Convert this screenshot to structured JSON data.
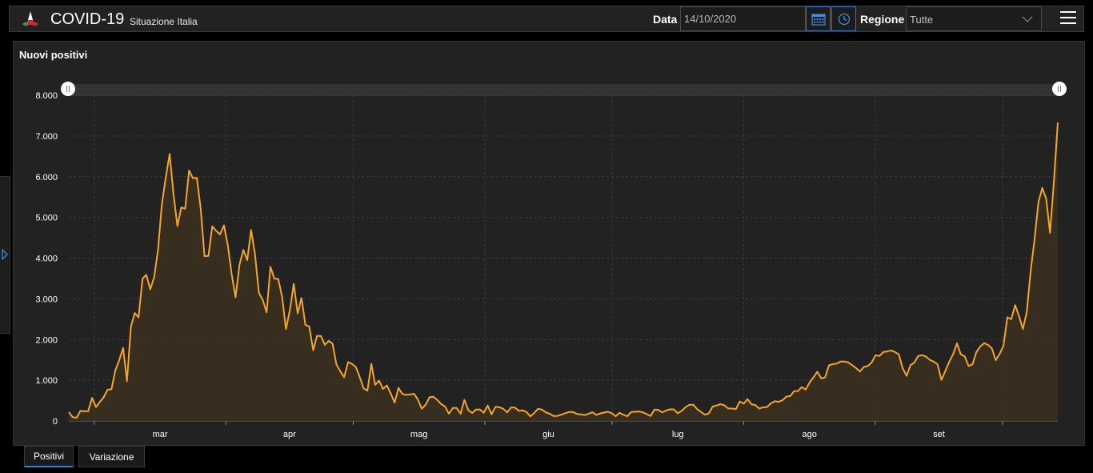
{
  "header": {
    "title": "COVID-19",
    "subtitle": "Situazione Italia",
    "date_label": "Data",
    "date_value": "14/10/2020",
    "region_label": "Regione",
    "region_value": "Tutte"
  },
  "panel": {
    "title": "Nuovi positivi"
  },
  "tabs": [
    "Positivi",
    "Variazione"
  ],
  "colors": {
    "line": "#f5a623",
    "fill": "#3a3020",
    "accent": "#2f7fd6",
    "background": "#222222"
  },
  "icons": [
    "logo",
    "calendar-icon",
    "clock-icon",
    "chevron-down-icon",
    "menu-icon",
    "sidebar-toggle-icon"
  ],
  "chart_data": {
    "type": "area",
    "title": "",
    "xlabel": "",
    "ylabel": "",
    "ylim": [
      0,
      8000
    ],
    "y_ticks": [
      0,
      1000,
      2000,
      3000,
      4000,
      5000,
      6000,
      7000,
      8000
    ],
    "y_tick_labels": [
      "0",
      "1.000",
      "2.000",
      "3.000",
      "4.000",
      "5.000",
      "6.000",
      "7.000",
      "8.000"
    ],
    "x_tick_labels": [
      "mar",
      "apr",
      "mag",
      "giu",
      "lug",
      "ago",
      "set"
    ],
    "x_start": "2020-02-24",
    "x_end": "2020-10-14",
    "grid": true,
    "series": [
      {
        "values": [
          221,
          93,
          78,
          250,
          238,
          240,
          566,
          342,
          466,
          587,
          769,
          778,
          1247,
          1492,
          1797,
          977,
          2313,
          2651,
          2547,
          3497,
          3590,
          3233,
          3526,
          4207,
          5322,
          5986,
          6557,
          5560,
          4789,
          5249,
          5210,
          6153,
          5959,
          5974,
          5217,
          4050,
          4053,
          4782,
          4668,
          4585,
          4805,
          4316,
          3599,
          3039,
          3836,
          4204,
          3951,
          4694,
          4092,
          3153,
          2972,
          2667,
          3786,
          3493,
          3491,
          3047,
          2256,
          2729,
          3370,
          2646,
          3021,
          2357,
          2324,
          1739,
          2091,
          2086,
          1872,
          1965,
          1900,
          1389,
          1221,
          1075,
          1444,
          1401,
          1327,
          1083,
          802,
          744,
          1402,
          888,
          992,
          789,
          875,
          675,
          451,
          813,
          665,
          642,
          652,
          669,
          531,
          300,
          397,
          584,
          593,
          516,
          416,
          355,
          179,
          318,
          321,
          177,
          518,
          270,
          197,
          280,
          283,
          202,
          379,
          163,
          346,
          338,
          300,
          210,
          329,
          333,
          251,
          262,
          221,
          113,
          197,
          300,
          280,
          210,
          176,
          120,
          126,
          156,
          190,
          222,
          218,
          173,
          161,
          148,
          175,
          215,
          150,
          184,
          206,
          228,
          190,
          115,
          201,
          151,
          115,
          220,
          227,
          234,
          212,
          169,
          121,
          280,
          270,
          213,
          255,
          286,
          285,
          188,
          246,
          338,
          399,
          399,
          293,
          223,
          154,
          187,
          353,
          380,
          412,
          387,
          306,
          306,
          290,
          479,
          424,
          536,
          410,
          392,
          304,
          337,
          342,
          430,
          485,
          470,
          510,
          599,
          612,
          732,
          736,
          833,
          771,
          944,
          1072,
          1210,
          1045,
          1071,
          1367,
          1397,
          1411,
          1460,
          1462,
          1437,
          1370,
          1297,
          1216,
          1326,
          1350,
          1434,
          1616,
          1597,
          1695,
          1707,
          1733,
          1694,
          1638,
          1297,
          1108,
          1370,
          1434,
          1597,
          1616,
          1585,
          1501,
          1458,
          1392,
          1008,
          1229,
          1452,
          1640,
          1907,
          1638,
          1587,
          1350,
          1392,
          1690,
          1829,
          1912,
          1869,
          1785,
          1494,
          1648,
          1851,
          2548,
          2499,
          2844,
          2578,
          2257,
          2677,
          3678,
          4458,
          5372,
          5724,
          5456,
          4619,
          5901,
          7332
        ]
      }
    ]
  }
}
